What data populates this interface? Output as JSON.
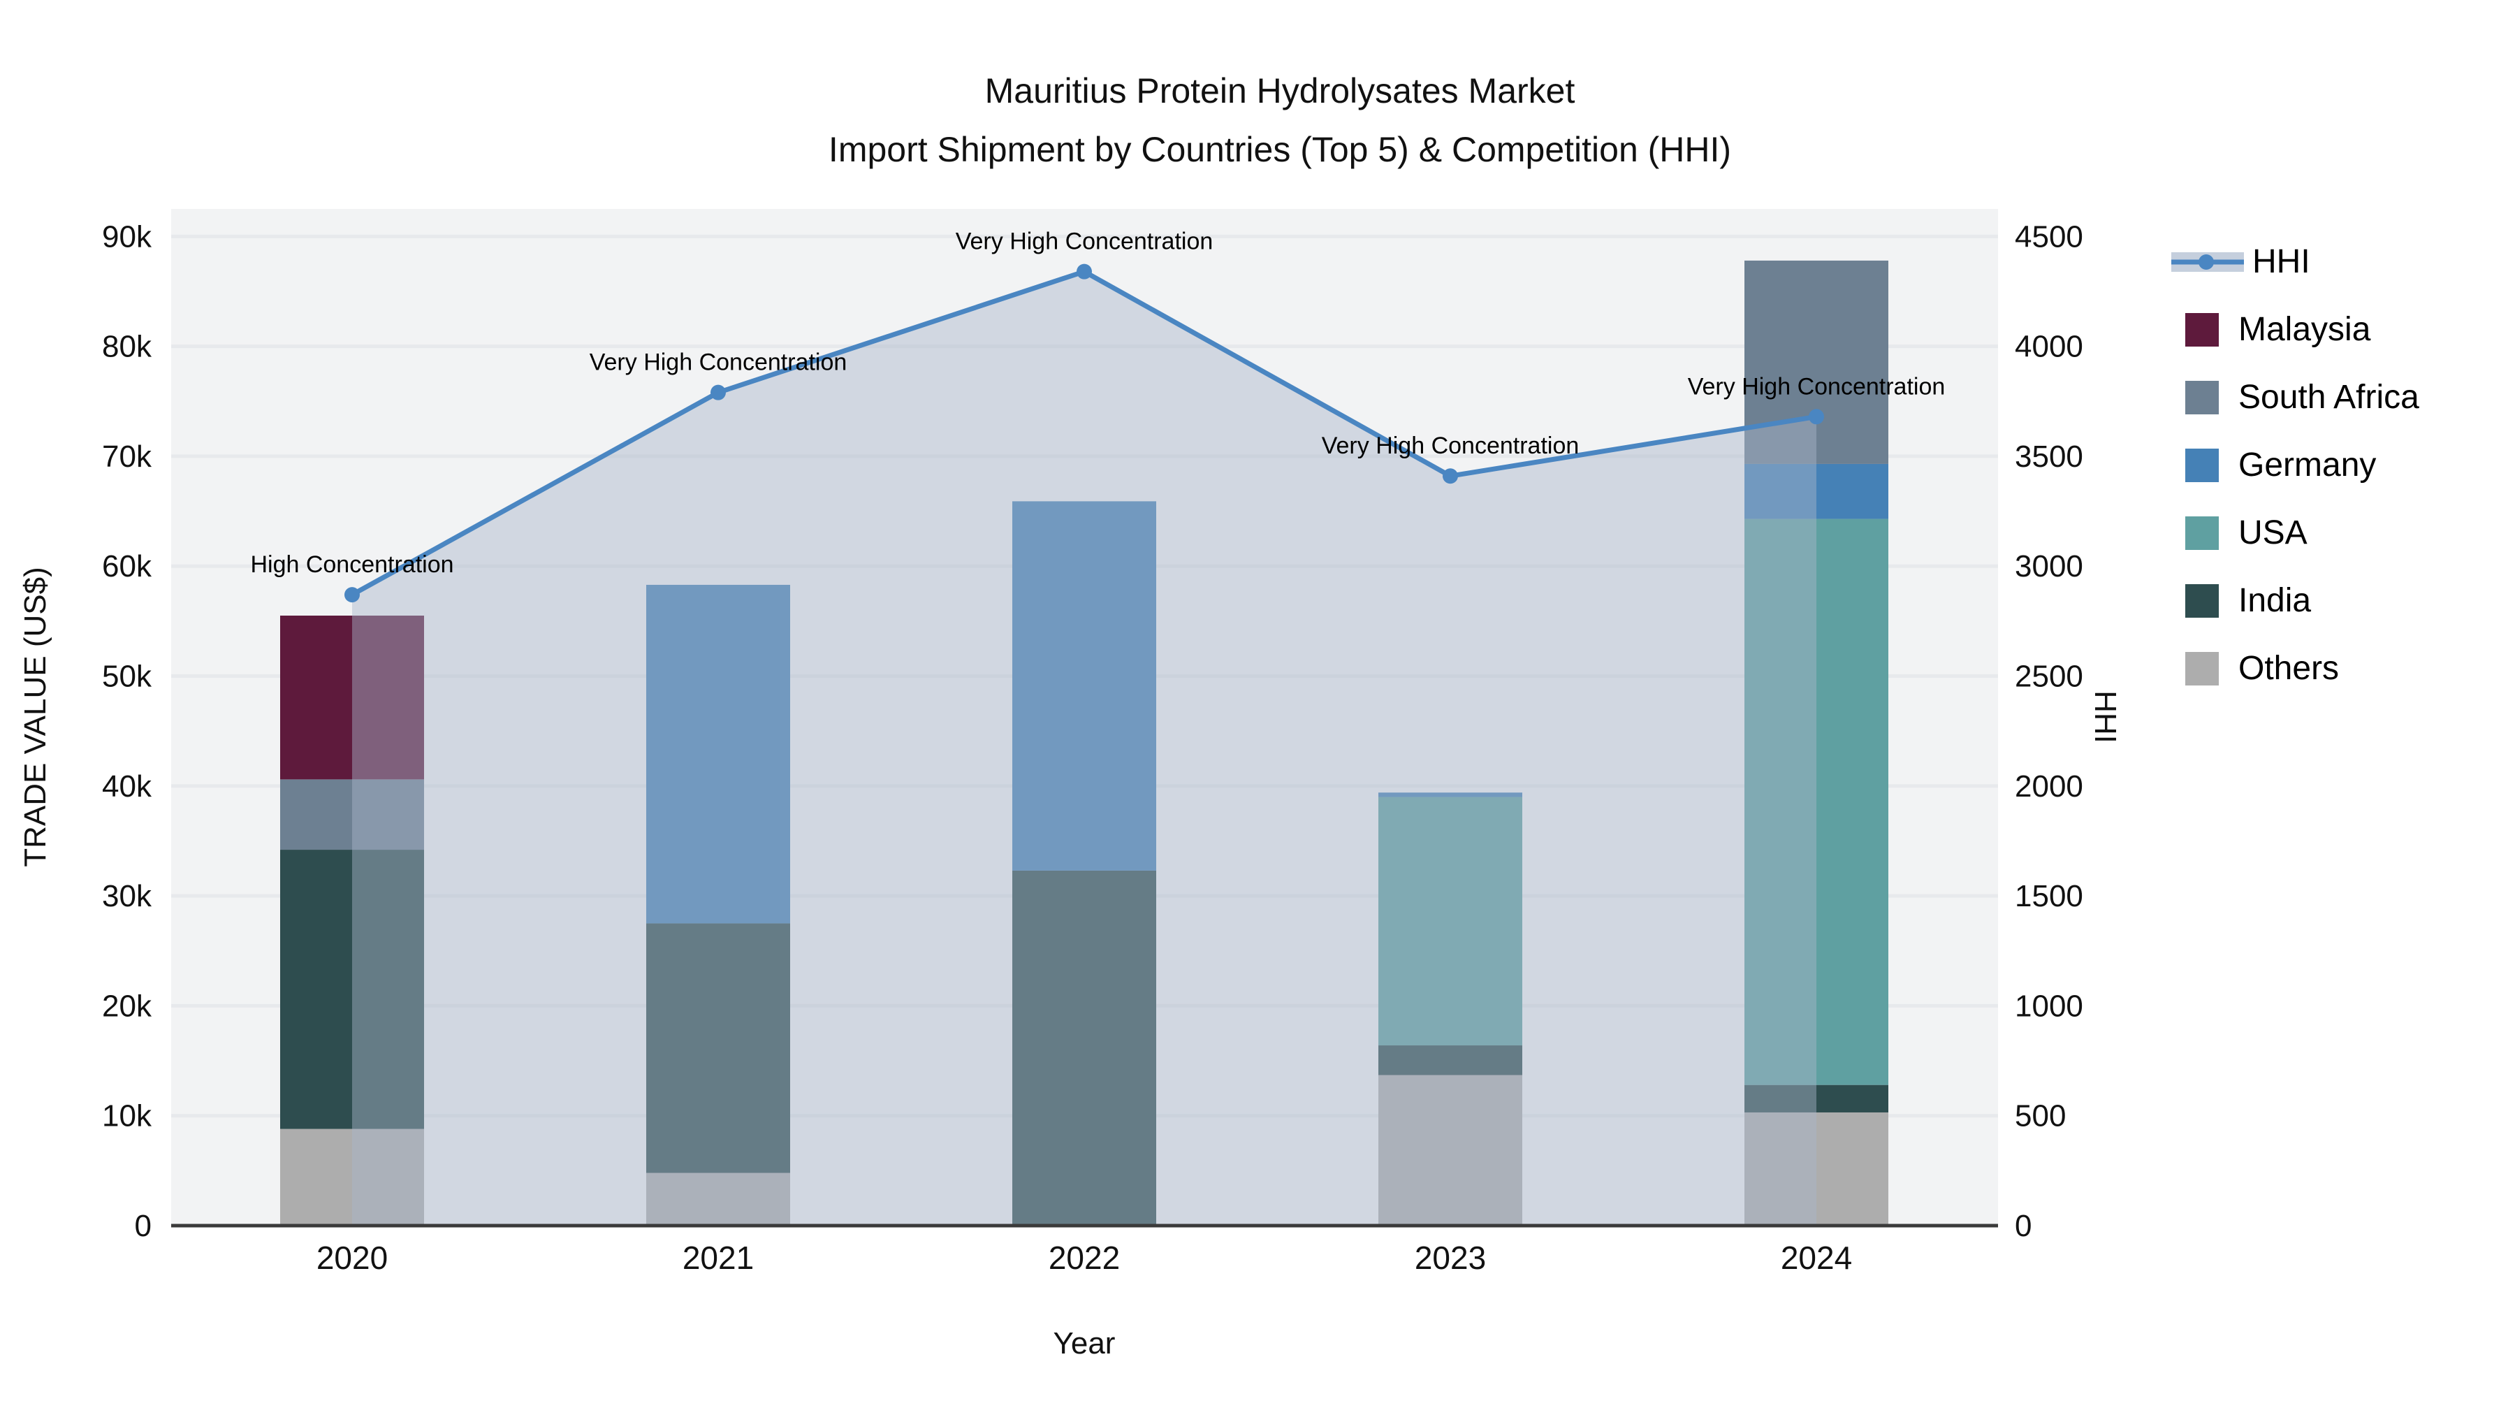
{
  "title": {
    "line1": "Mauritius Protein Hydrolysates Market",
    "line2": "Import Shipment by Countries (Top 5) & Competition (HHI)"
  },
  "chart_data": {
    "type": "bar",
    "subtype": "stacked-bar-with-line-overlay",
    "categories": [
      "2020",
      "2021",
      "2022",
      "2023",
      "2024"
    ],
    "xlabel": "Year",
    "ylabel_left": "TRADE VALUE (US$)",
    "ylabel_right": "HHI",
    "y_left_ticks": [
      "0",
      "10k",
      "20k",
      "30k",
      "40k",
      "50k",
      "60k",
      "70k",
      "80k",
      "90k"
    ],
    "y_left_tick_values": [
      0,
      10000,
      20000,
      30000,
      40000,
      50000,
      60000,
      70000,
      80000,
      90000
    ],
    "y_left_max": 92500,
    "y_right_ticks": [
      "0",
      "500",
      "1000",
      "1500",
      "2000",
      "2500",
      "3000",
      "3500",
      "4000",
      "4500"
    ],
    "y_right_tick_values": [
      0,
      500,
      1000,
      1500,
      2000,
      2500,
      3000,
      3500,
      4000,
      4500
    ],
    "y_right_max": 4625,
    "grid": "horizontal",
    "plot_bg": "#f2f3f4",
    "grid_color": "#e7e9ec",
    "axis_line_color": "#3a3a3a",
    "series": [
      {
        "name": "Malaysia",
        "color": "#5e1a3c",
        "values": [
          14900,
          0,
          0,
          0,
          0
        ]
      },
      {
        "name": "South Africa",
        "color": "#6d8092",
        "values": [
          6400,
          0,
          0,
          0,
          18500
        ]
      },
      {
        "name": "Germany",
        "color": "#4581b6",
        "values": [
          0,
          30800,
          33600,
          400,
          5000
        ]
      },
      {
        "name": "USA",
        "color": "#5fa0a1",
        "values": [
          0,
          0,
          0,
          22600,
          51500
        ]
      },
      {
        "name": "India",
        "color": "#2e4d4f",
        "values": [
          25400,
          22700,
          32300,
          2700,
          2500
        ]
      },
      {
        "name": "Others",
        "color": "#adadad",
        "values": [
          8800,
          4800,
          0,
          13700,
          10300
        ]
      }
    ],
    "stack_order_bottom_to_top": [
      "Others",
      "India",
      "USA",
      "Germany",
      "South Africa",
      "Malaysia"
    ],
    "bar_totals": [
      55500,
      58300,
      65900,
      39400,
      87800
    ],
    "line": {
      "name": "HHI",
      "color": "#4a86c2",
      "area_fill": "rgba(168,182,202,0.45)",
      "legend_band_color": "#c5cfdd",
      "values": [
        2870,
        3790,
        4340,
        3410,
        3680
      ],
      "annotations": [
        "High Concentration",
        "Very High Concentration",
        "Very High Concentration",
        "Very High Concentration",
        "Very High Concentration"
      ]
    }
  },
  "legend": {
    "items": [
      {
        "label": "HHI",
        "type": "line"
      },
      {
        "label": "Malaysia",
        "type": "swatch"
      },
      {
        "label": "South Africa",
        "type": "swatch"
      },
      {
        "label": "Germany",
        "type": "swatch"
      },
      {
        "label": "USA",
        "type": "swatch"
      },
      {
        "label": "India",
        "type": "swatch"
      },
      {
        "label": "Others",
        "type": "swatch"
      }
    ]
  }
}
